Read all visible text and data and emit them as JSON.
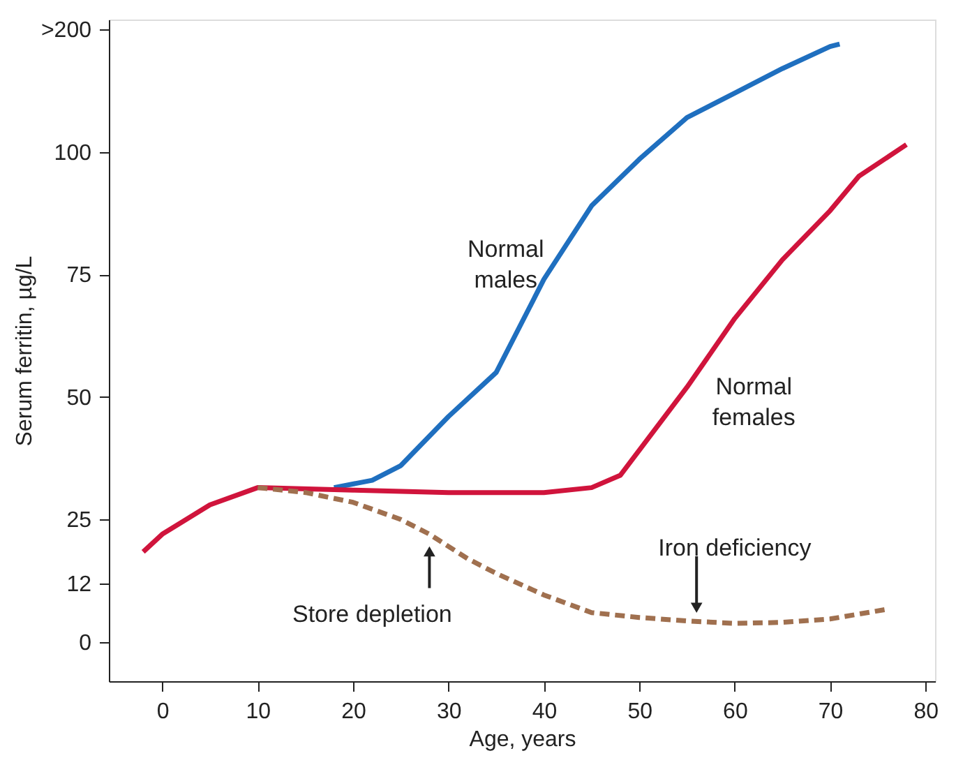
{
  "chart_data": {
    "type": "line",
    "xlabel": "Age, years",
    "ylabel": "Serum ferritin, µg/L",
    "xlim": [
      -5.6,
      81
    ],
    "xticks": [
      0,
      10,
      20,
      30,
      40,
      50,
      60,
      70,
      80
    ],
    "ylim": [
      -8,
      127
    ],
    "yticks": [
      0,
      12,
      25,
      50,
      75,
      100,
      {
        "value": 125,
        "label": ">200"
      }
    ],
    "grid": false,
    "legend": false,
    "marker": "none",
    "series": [
      {
        "name": "Normal males",
        "color": "#1f6fbf",
        "line_style": "solid",
        "x": [
          18,
          22,
          25,
          30,
          35,
          40,
          45,
          50,
          55,
          60,
          65,
          70,
          71
        ],
        "values": [
          31.5,
          33,
          36,
          46,
          55,
          74,
          89,
          98.5,
          107,
          112,
          117,
          121.5,
          122
        ]
      },
      {
        "name": "Normal females",
        "color": "#d0143c",
        "line_style": "solid",
        "x": [
          -2,
          0,
          5,
          10,
          20,
          30,
          40,
          45,
          48,
          55,
          60,
          65,
          70,
          73,
          78
        ],
        "values": [
          18.4,
          22,
          28,
          31.5,
          31,
          30.5,
          30.5,
          31.5,
          34,
          52,
          66,
          78,
          88,
          95,
          101.5
        ]
      },
      {
        "color": "#a0704f",
        "line_style": "dashed",
        "x": [
          10,
          15,
          20,
          25,
          28,
          32,
          35,
          40,
          45,
          50,
          55,
          60,
          65,
          70,
          76
        ],
        "values": [
          31.5,
          30.5,
          28.5,
          25,
          22,
          17,
          14,
          9.6,
          6,
          5,
          4.3,
          3.8,
          4,
          4.7,
          6.7
        ]
      }
    ],
    "annotations": [
      {
        "text": "Store depletion",
        "x": 28,
        "y": 22
      },
      {
        "text": "Iron deficiency",
        "x": 56,
        "y": 4.3
      }
    ]
  }
}
